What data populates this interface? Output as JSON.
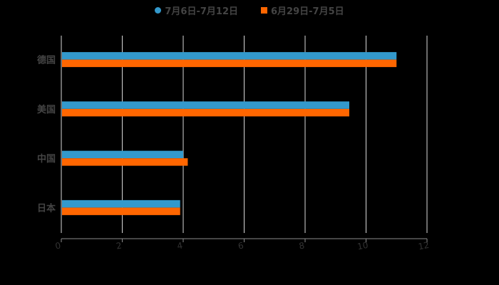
{
  "chart_data": {
    "type": "bar",
    "orientation": "horizontal",
    "title": "",
    "xlabel": "",
    "ylabel": "",
    "categories": [
      "德国",
      "美国",
      "中国",
      "日本"
    ],
    "series": [
      {
        "name": "7月6日-7月12日",
        "color": "#3399CC",
        "values": [
          11.0,
          9.45,
          4.0,
          3.9
        ]
      },
      {
        "name": "6月29日-7月5日",
        "color": "#FF6600",
        "values": [
          11.0,
          9.45,
          4.15,
          3.9
        ]
      }
    ],
    "xlim": [
      0,
      12
    ],
    "xticks": [
      "0",
      "2",
      "4",
      "6",
      "8",
      "10",
      "12"
    ],
    "grid": true,
    "legend_position": "top"
  },
  "legend": {
    "items": [
      {
        "label": "7月6日-7月12日",
        "color": "#3399CC",
        "shape": "circle"
      },
      {
        "label": "6月29日-7月5日",
        "color": "#FF6600",
        "shape": "square"
      }
    ]
  }
}
